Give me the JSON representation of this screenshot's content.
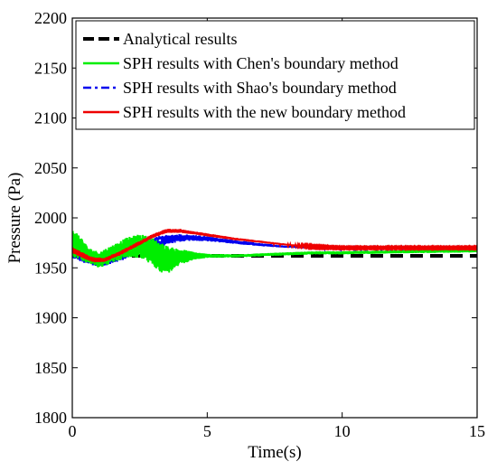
{
  "chart_data": {
    "type": "line",
    "title": "",
    "xlabel": "Time(s)",
    "ylabel": "Pressure (Pa)",
    "xlim": [
      0,
      15
    ],
    "ylim": [
      1800,
      2200
    ],
    "xticks": [
      0,
      5,
      10,
      15
    ],
    "yticks": [
      1800,
      1850,
      1900,
      1950,
      2000,
      2050,
      2100,
      2150,
      2200
    ],
    "grid": false,
    "legend_position": "top-right",
    "series": [
      {
        "name": "Analytical results",
        "color": "#000000",
        "style": "dashed",
        "x": [
          0,
          15
        ],
        "y": [
          1962,
          1962
        ]
      },
      {
        "name": "SPH results with Chen's boundary method",
        "color": "#00ee00",
        "style": "solid",
        "x": [
          0,
          0.3,
          0.6,
          1.0,
          1.5,
          2.0,
          2.5,
          3.0,
          3.3,
          3.6,
          4.0,
          4.5,
          5.0,
          6.0,
          7.0,
          8.0,
          9.0,
          10.0,
          12.0,
          15.0
        ],
        "y": [
          1975,
          1970,
          1962,
          1958,
          1964,
          1970,
          1972,
          1966,
          1960,
          1958,
          1961,
          1962,
          1962,
          1962,
          1963,
          1964,
          1965,
          1965,
          1966,
          1967
        ],
        "noise_amp": [
          14,
          12,
          8,
          8,
          9,
          10,
          12,
          14,
          15,
          13,
          8,
          4,
          2,
          1.5,
          1.5,
          1.5,
          1.5,
          1.5,
          1.5,
          1.5
        ]
      },
      {
        "name": "SPH results with Shao's boundary method",
        "color": "#0000ee",
        "style": "dashdot",
        "x": [
          0,
          0.4,
          0.8,
          1.2,
          1.8,
          2.5,
          3.0,
          3.5,
          4.0,
          4.5,
          5.0,
          6.0,
          7.0,
          8.0,
          9.0,
          10.0,
          12.0,
          15.0
        ],
        "y": [
          1965,
          1960,
          1956,
          1956,
          1962,
          1970,
          1975,
          1978,
          1980,
          1980,
          1979,
          1976,
          1973,
          1971,
          1970,
          1969,
          1969,
          1969
        ],
        "noise_amp": [
          5,
          5,
          4,
          4,
          5,
          6,
          6,
          5,
          4,
          3,
          2.5,
          2,
          1.5,
          1,
          1,
          0.8,
          0.8,
          0.8
        ]
      },
      {
        "name": "SPH results with the new boundary method",
        "color": "#ee0000",
        "style": "solid",
        "x": [
          0,
          0.4,
          0.8,
          1.2,
          1.8,
          2.5,
          3.0,
          3.5,
          4.0,
          4.5,
          5.0,
          6.0,
          7.0,
          8.0,
          9.0,
          10.0,
          12.0,
          15.0
        ],
        "y": [
          1968,
          1962,
          1958,
          1958,
          1965,
          1975,
          1982,
          1987,
          1987,
          1985,
          1983,
          1979,
          1976,
          1973,
          1971,
          1970,
          1970,
          1970
        ],
        "noise_amp": [
          3,
          3,
          2.5,
          2,
          2,
          2,
          2,
          2,
          2,
          1.5,
          1.5,
          1.2,
          1,
          0.8,
          0.6,
          0.5,
          0.5,
          0.5
        ]
      }
    ]
  }
}
